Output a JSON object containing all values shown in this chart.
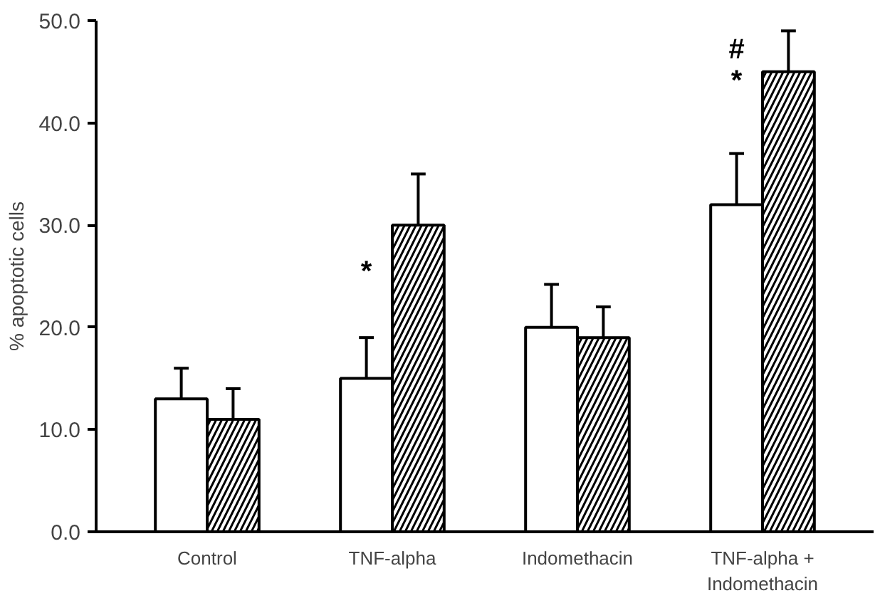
{
  "chart_data": {
    "type": "bar",
    "ylabel": "% apoptotic cells",
    "categories": [
      "Control",
      "TNF-alpha",
      "Indomethacin",
      "TNF-alpha + Indomethacin"
    ],
    "series": [
      {
        "color": "#ffffff",
        "values": [
          13,
          15,
          20,
          32
        ],
        "errors": [
          3,
          4,
          4.2,
          5
        ]
      },
      {
        "color": "#000000",
        "values": [
          11,
          30,
          19,
          45
        ],
        "errors": [
          3,
          5,
          3,
          4
        ]
      }
    ],
    "ylim": [
      0,
      50
    ],
    "yticks": [
      {
        "value": 0,
        "label": "0.0"
      },
      {
        "value": 10,
        "label": "10.0"
      },
      {
        "value": 20,
        "label": "20.0"
      },
      {
        "value": 30,
        "label": "30.0"
      },
      {
        "value": 40,
        "label": "40.0"
      },
      {
        "value": 50,
        "label": "50.0"
      }
    ],
    "grid": false,
    "annotations": [
      {
        "text": "*",
        "x": "TNF-alpha",
        "y": 25.4
      },
      {
        "text": "*",
        "x": "TNF-alpha + Indomethacin",
        "y": 44.1
      },
      "#"
    ]
  }
}
